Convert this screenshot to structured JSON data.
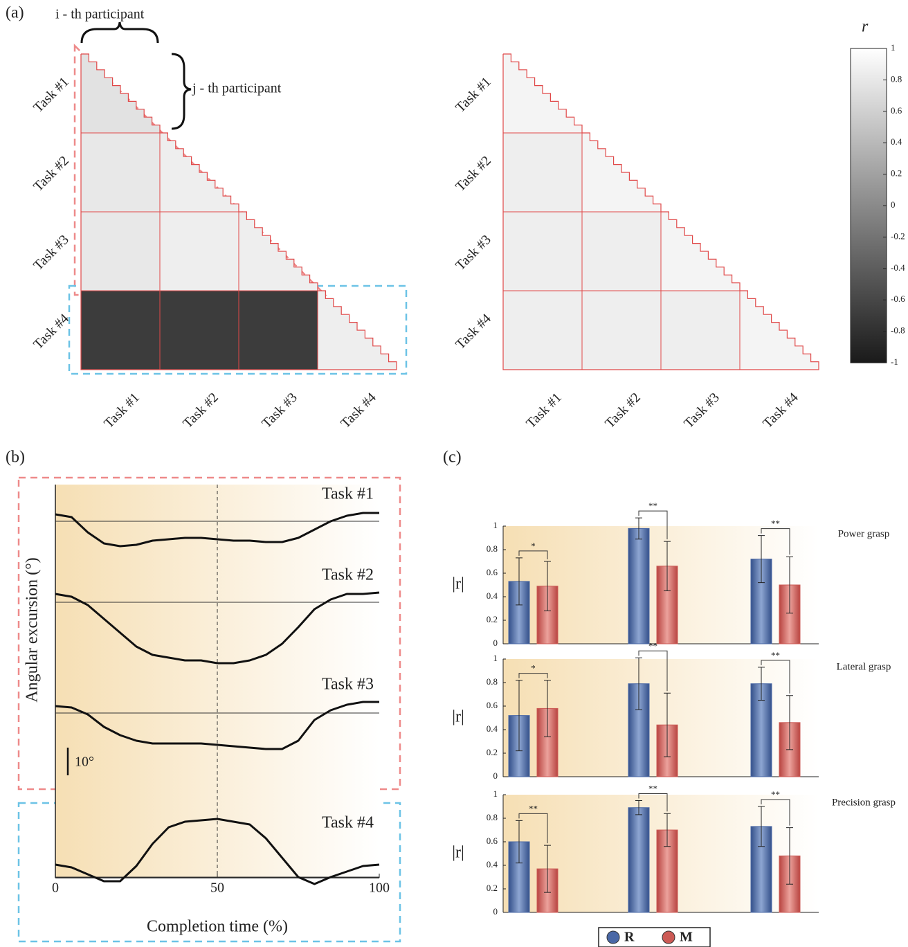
{
  "panel_labels": [
    "(a)",
    "(b)",
    "(c)"
  ],
  "legend": [
    {
      "name": "R",
      "color": "#4a68a6"
    },
    {
      "name": "M",
      "color": "#cc5a55"
    }
  ],
  "chart_data": [
    {
      "type": "heatmap",
      "task_labels": [
        "Task #1",
        "Task #2",
        "Task #3",
        "Task #4"
      ],
      "annotations": [
        "i - th participant",
        "j - th participant"
      ],
      "block_values": [
        [
          0.75
        ],
        [
          0.8,
          0.85
        ],
        [
          0.8,
          0.85,
          0.85
        ],
        [
          -0.7,
          -0.7,
          -0.7,
          0.85
        ]
      ]
    },
    {
      "type": "heatmap",
      "task_labels": [
        "Task #1",
        "Task #2",
        "Task #3",
        "Task #4"
      ],
      "block_values": [
        [
          0.9
        ],
        [
          0.85,
          0.9
        ],
        [
          0.85,
          0.85,
          0.9
        ],
        [
          0.85,
          0.85,
          0.85,
          0.9
        ]
      ]
    },
    {
      "type": "colorbar",
      "title": "r",
      "ylim": [
        -1,
        1
      ],
      "yticks": [
        -1,
        -0.8,
        -0.6,
        -0.4,
        -0.2,
        0,
        0.2,
        0.4,
        0.6,
        0.8,
        1
      ]
    },
    {
      "type": "line",
      "xlabel": "Completion time (%)",
      "ylabel": "Angular excursion (°)",
      "xlim": [
        0,
        100
      ],
      "xticks": [
        0,
        50,
        100
      ],
      "x": [
        0,
        5,
        10,
        15,
        20,
        25,
        30,
        35,
        40,
        45,
        50,
        55,
        60,
        65,
        70,
        75,
        80,
        85,
        90,
        95,
        100
      ],
      "scale_bar": {
        "value": 10,
        "label": "10°"
      },
      "series": [
        {
          "name": "Task #1",
          "values": [
            2.5,
            1.5,
            -4,
            -8,
            -9,
            -8.5,
            -7,
            -6.5,
            -6,
            -6,
            -6.5,
            -7,
            -7,
            -7.5,
            -7.5,
            -6,
            -3,
            0,
            2,
            3,
            3
          ]
        },
        {
          "name": "Task #2",
          "values": [
            3,
            2,
            -1,
            -6,
            -11,
            -16,
            -19,
            -20,
            -21,
            -21,
            -22,
            -22,
            -21,
            -19,
            -15,
            -9,
            -2.5,
            1,
            3,
            3,
            3.5
          ]
        },
        {
          "name": "Task #3",
          "values": [
            2.5,
            2,
            -0.5,
            -5,
            -8,
            -10,
            -11,
            -11,
            -11,
            -11,
            -11.5,
            -12,
            -12.5,
            -13,
            -13,
            -10,
            -2.5,
            1,
            3,
            4,
            4
          ]
        },
        {
          "name": "Task #4",
          "values": [
            4.5,
            3.5,
            1,
            -1.5,
            -1.5,
            4,
            12,
            18,
            20,
            20.5,
            21,
            20,
            19,
            14,
            7,
            0,
            -2.5,
            0,
            2,
            4,
            4.5
          ]
        }
      ]
    },
    {
      "type": "bar",
      "title": "Power grasp",
      "ylabel": "|r|",
      "ylim": [
        0,
        1
      ],
      "yticks": [
        0,
        0.2,
        0.4,
        0.6,
        0.8,
        1
      ],
      "series": [
        {
          "values": [
            0.53,
            0.98,
            0.72
          ],
          "errors": [
            0.2,
            0.09,
            0.2
          ]
        },
        {
          "values": [
            0.49,
            0.66,
            0.5
          ],
          "errors": [
            0.21,
            0.21,
            0.24
          ]
        }
      ],
      "significance": [
        "*",
        "**",
        "**"
      ]
    },
    {
      "type": "bar",
      "title": "Lateral grasp",
      "ylabel": "|r|",
      "ylim": [
        0,
        1
      ],
      "yticks": [
        0,
        0.2,
        0.4,
        0.6,
        0.8,
        1
      ],
      "series": [
        {
          "values": [
            0.52,
            0.79,
            0.79
          ],
          "errors": [
            0.3,
            0.22,
            0.14
          ]
        },
        {
          "values": [
            0.58,
            0.44,
            0.46
          ],
          "errors": [
            0.24,
            0.27,
            0.23
          ]
        }
      ],
      "significance": [
        "*",
        "**",
        "**"
      ]
    },
    {
      "type": "bar",
      "title": "Precision grasp",
      "ylabel": "|r|",
      "ylim": [
        0,
        1
      ],
      "yticks": [
        0,
        0.2,
        0.4,
        0.6,
        0.8,
        1
      ],
      "series": [
        {
          "values": [
            0.6,
            0.89,
            0.73
          ],
          "errors": [
            0.18,
            0.06,
            0.17
          ]
        },
        {
          "values": [
            0.37,
            0.7,
            0.48
          ],
          "errors": [
            0.2,
            0.14,
            0.24
          ]
        }
      ],
      "significance": [
        "**",
        "**",
        "**"
      ]
    }
  ]
}
